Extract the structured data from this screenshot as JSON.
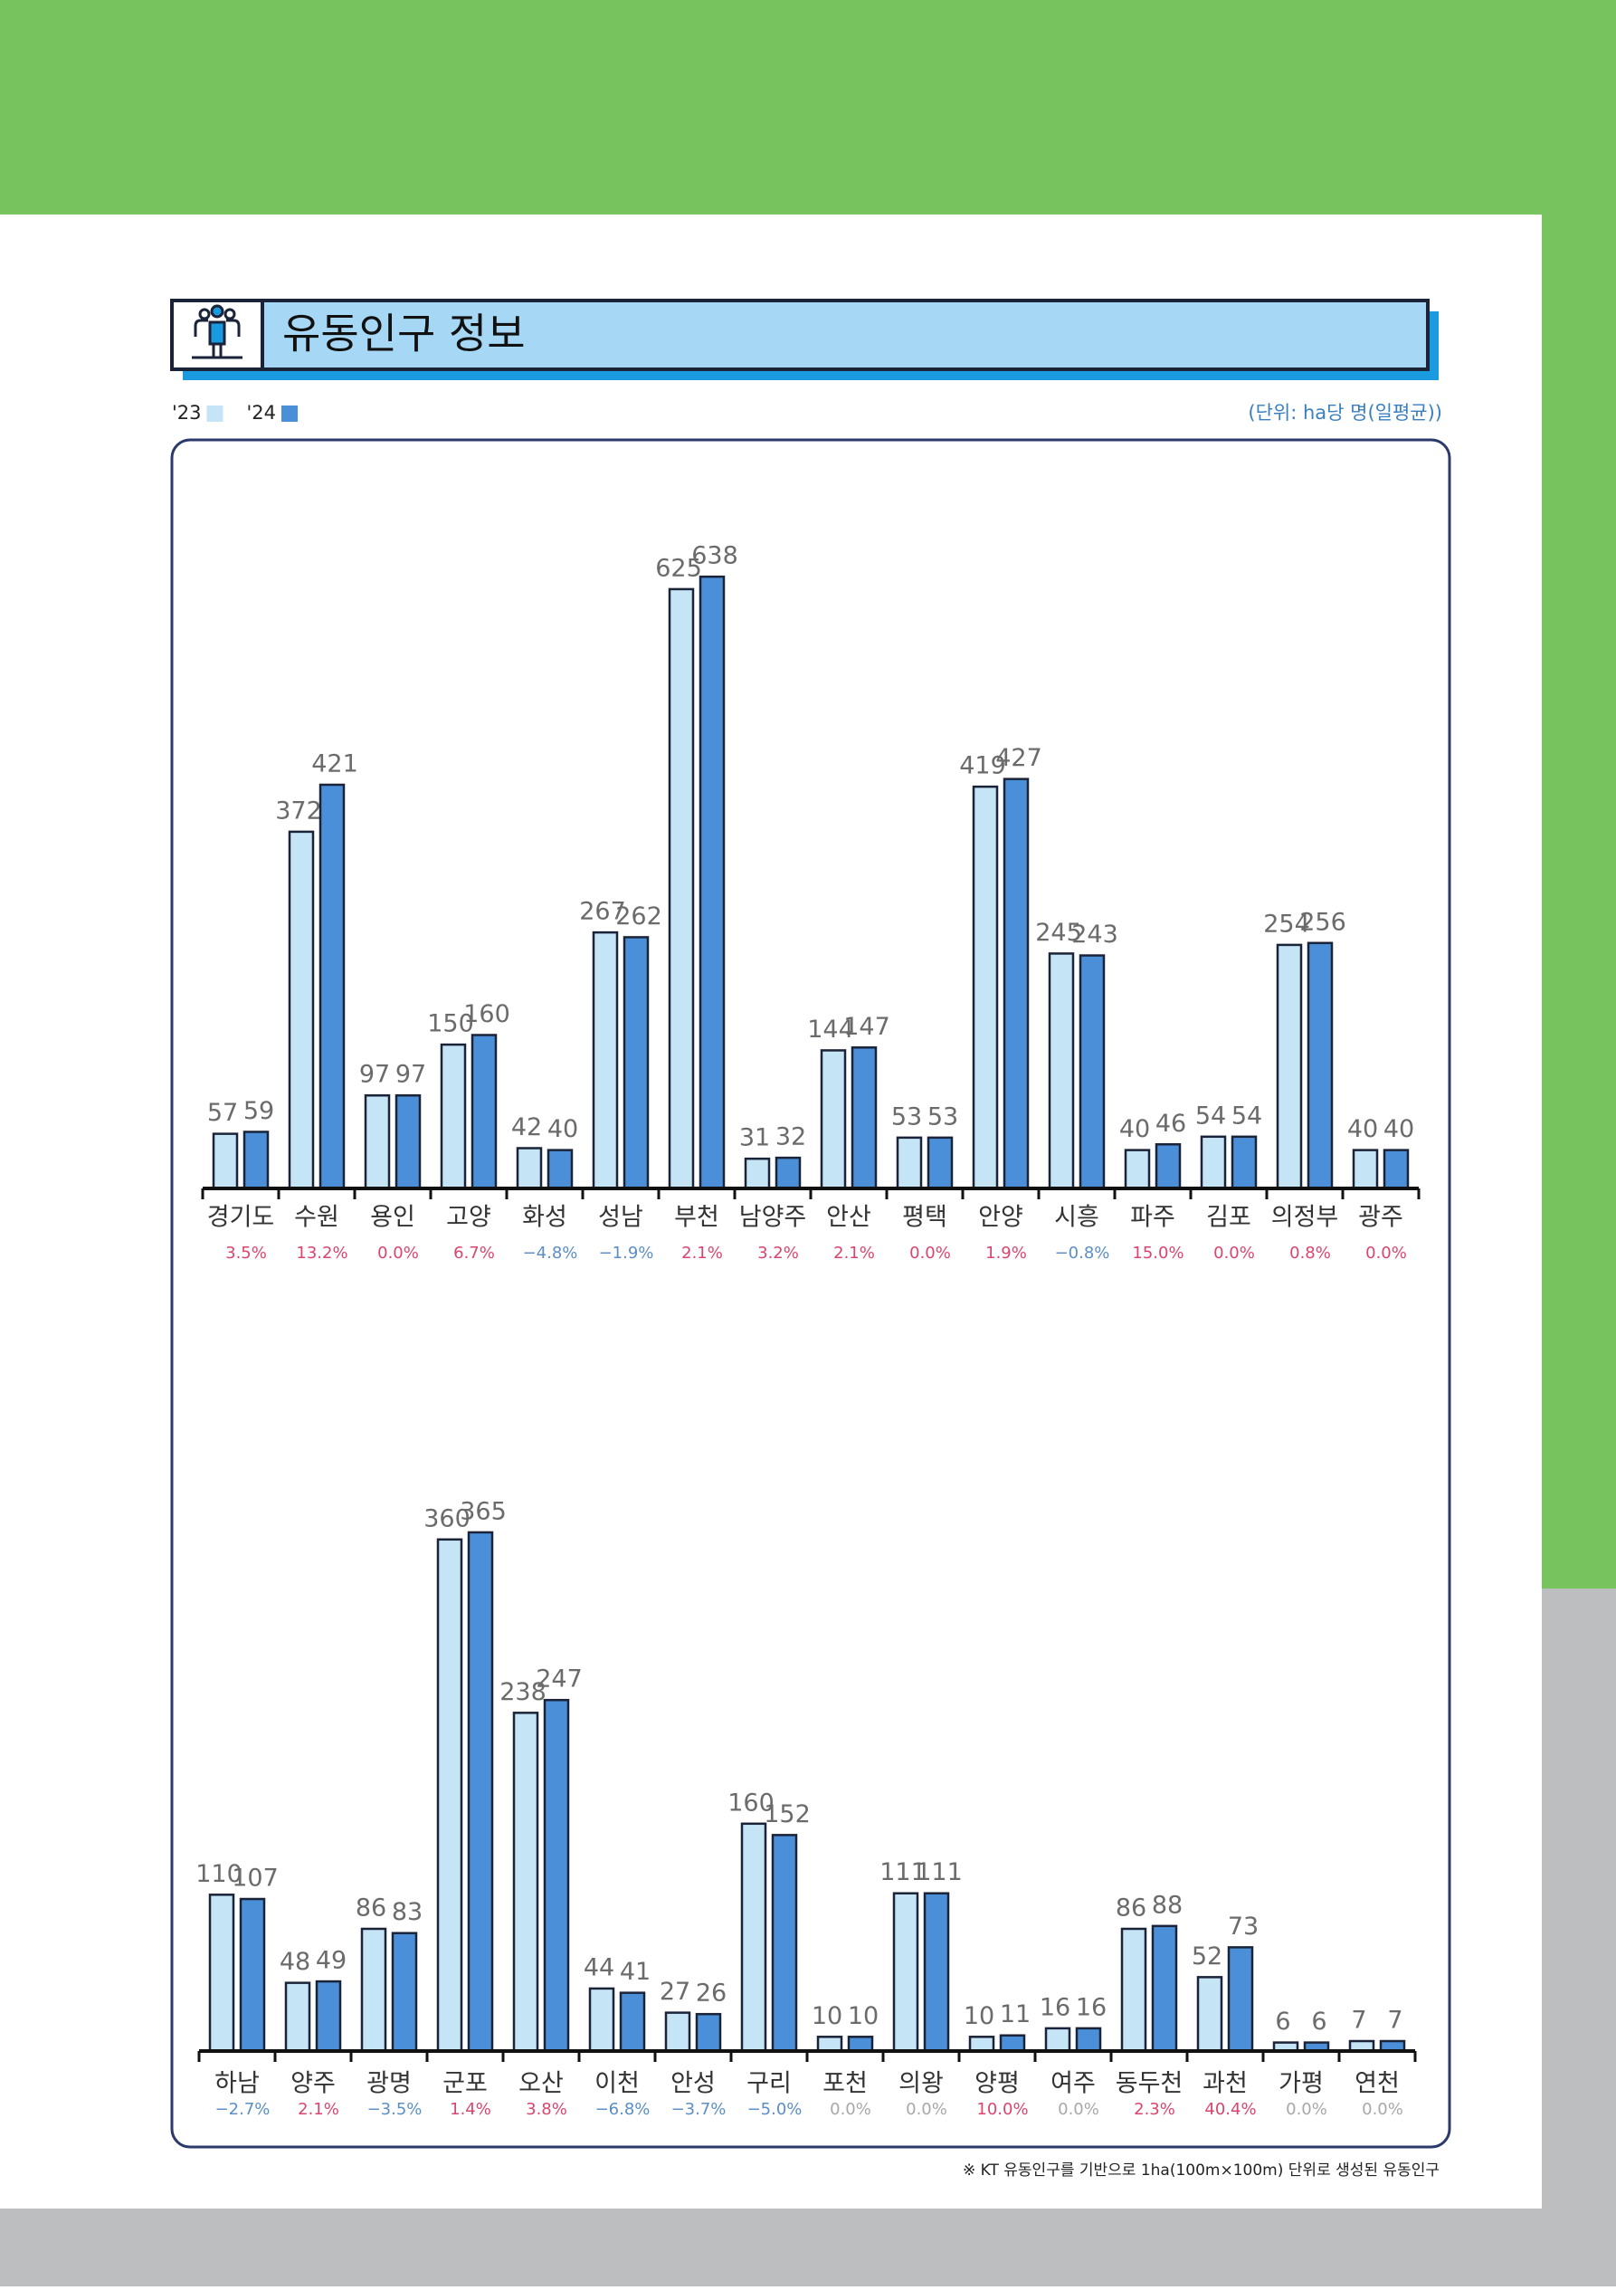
{
  "header": {
    "title": "유동인구 정보",
    "unit": "(단위: ha당 명(일평균))"
  },
  "footnote": "※ KT 유동인구를 기반으로 1ha(100m×100m) 단위로 생성된 유동인구",
  "chart_data": [
    {
      "type": "bar",
      "categories": [
        "경기도",
        "수원",
        "용인",
        "고양",
        "화성",
        "성남",
        "부천",
        "남양주",
        "안산",
        "평택",
        "안양",
        "시흥",
        "파주",
        "김포",
        "의정부",
        "광주"
      ],
      "series": [
        {
          "name": "'23",
          "color": "#c5e4f5",
          "values": [
            57,
            372,
            97,
            150,
            42,
            267,
            625,
            31,
            144,
            53,
            419,
            245,
            40,
            54,
            254,
            40
          ]
        },
        {
          "name": "'24",
          "color": "#4a8fd8",
          "values": [
            59,
            421,
            97,
            160,
            40,
            262,
            638,
            32,
            147,
            53,
            427,
            243,
            46,
            54,
            256,
            40
          ]
        }
      ],
      "changes": [
        3.5,
        13.2,
        0.0,
        6.7,
        -4.8,
        -1.9,
        2.1,
        3.2,
        2.1,
        0.0,
        1.9,
        -0.8,
        15.0,
        0.0,
        0.8,
        0.0
      ],
      "change_labels": [
        "3.5%",
        "13.2%",
        "0.0%",
        "6.7%",
        "−4.8%",
        "−1.9%",
        "2.1%",
        "3.2%",
        "2.1%",
        "0.0%",
        "1.9%",
        "−0.8%",
        "15.0%",
        "0.0%",
        "0.8%",
        "0.0%"
      ],
      "positive_color": "#d9456e",
      "negative_color": "#5b8fc4",
      "zero_color": "#d9456e",
      "ylim": [
        0,
        640
      ]
    },
    {
      "type": "bar",
      "categories": [
        "하남",
        "양주",
        "광명",
        "군포",
        "오산",
        "이천",
        "안성",
        "구리",
        "포천",
        "의왕",
        "양평",
        "여주",
        "동두천",
        "과천",
        "가평",
        "연천"
      ],
      "series": [
        {
          "color": "#c5e4f5",
          "values": [
            110,
            48,
            86,
            360,
            238,
            44,
            27,
            160,
            10,
            111,
            10,
            16,
            86,
            52,
            6,
            7
          ]
        },
        {
          "color": "#4a8fd8",
          "values": [
            107,
            49,
            83,
            365,
            247,
            41,
            26,
            152,
            10,
            111,
            11,
            16,
            88,
            73,
            6,
            7
          ]
        }
      ],
      "changes": [
        -2.7,
        2.1,
        -3.5,
        1.4,
        3.8,
        -6.8,
        -3.7,
        -5.0,
        0.0,
        0.0,
        10.0,
        0.0,
        2.3,
        40.4,
        0.0,
        0.0
      ],
      "change_labels": [
        "−2.7%",
        "2.1%",
        "−3.5%",
        "1.4%",
        "3.8%",
        "−6.8%",
        "−3.7%",
        "−5.0%",
        "0.0%",
        "0.0%",
        "10.0%",
        "0.0%",
        "2.3%",
        "40.4%",
        "0.0%",
        "0.0%"
      ],
      "positive_color": "#d9456e",
      "negative_color": "#5b8fc4",
      "zero_color": "#a8a8a8",
      "ylim": [
        0,
        400
      ]
    }
  ]
}
